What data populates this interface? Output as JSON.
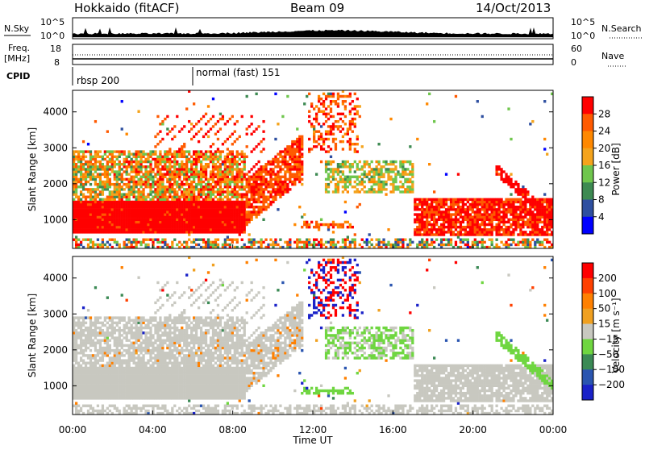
{
  "header": {
    "station": "Hokkaido (fitACF)",
    "beam": "Beam 09",
    "date": "14/Oct/2013"
  },
  "top_panels": {
    "nsky_label": "N.Sky",
    "nsky_ticks": [
      "10^5",
      "10^0"
    ],
    "nsearch_label": "N.Search",
    "freq_label_1": "Freq.",
    "freq_label_2": "[MHz]",
    "freq_ticks": [
      "18",
      "8"
    ],
    "nave_label": "Nave",
    "nave_ticks": [
      "60",
      "0"
    ],
    "cpid_label": "CPID",
    "modes": [
      {
        "name": "rbsp 200",
        "start_hour": 0
      },
      {
        "name": "normal (fast) 151",
        "start_hour": 6
      }
    ]
  },
  "colors": {
    "power_scale": [
      "#0000ff",
      "#2e4fa0",
      "#3d8a52",
      "#6fc64d",
      "#f4a31c",
      "#ff8800",
      "#ff5a00",
      "#ff0000"
    ],
    "velocity_scale": [
      "#1a22c8",
      "#2a55b0",
      "#3b8a55",
      "#6fd640",
      "#c8c8c0",
      "#f0a020",
      "#ff8000",
      "#ff4000",
      "#ff0000"
    ]
  },
  "chart_data": [
    {
      "type": "heatmap",
      "name_id": "power",
      "xlabel": "",
      "ylabel": "Slant Range [km]",
      "xlim": [
        0,
        24
      ],
      "ylim": [
        200,
        4600
      ],
      "y_ticks": [
        1000,
        2000,
        3000,
        4000
      ],
      "colorbar": {
        "label": "Power [dB]",
        "ticks": [
          "28",
          "24",
          "20",
          "16",
          "12",
          "8",
          "4"
        ],
        "range": [
          0,
          30
        ]
      }
    },
    {
      "type": "heatmap",
      "name_id": "velocity",
      "xlabel": "Time UT",
      "ylabel": "Slant Range [km]",
      "xlim": [
        0,
        24
      ],
      "ylim": [
        200,
        4600
      ],
      "x_ticks": [
        "00:00",
        "04:00",
        "08:00",
        "12:00",
        "16:00",
        "20:00",
        "00:00"
      ],
      "y_ticks": [
        1000,
        2000,
        3000,
        4000
      ],
      "colorbar": {
        "label": "Velocity [m s⁻¹]",
        "ticks": [
          "200",
          "100",
          "50",
          "15",
          "−15",
          "−50",
          "−100",
          "−200"
        ]
      }
    }
  ]
}
